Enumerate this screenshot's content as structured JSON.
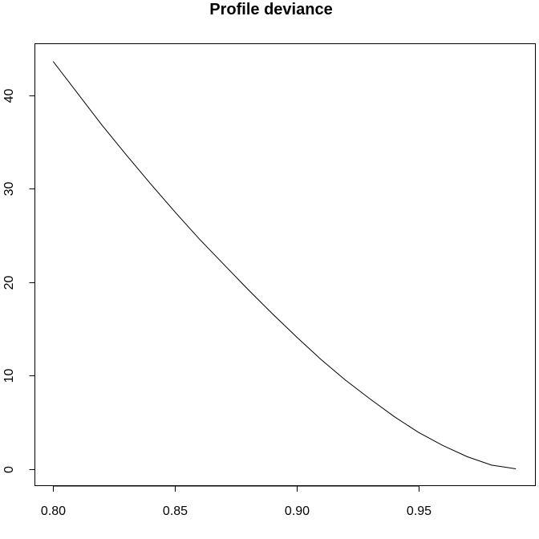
{
  "chart_data": {
    "type": "line",
    "title": "Profile deviance",
    "xlabel": "",
    "ylabel": "",
    "xlim": [
      0.7925,
      0.998
    ],
    "ylim": [
      -1.8,
      45.5
    ],
    "x_ticks": [
      0.8,
      0.85,
      0.9,
      0.95
    ],
    "x_tick_labels": [
      "0.80",
      "0.85",
      "0.90",
      "0.95"
    ],
    "y_ticks": [
      0,
      10,
      20,
      30,
      40
    ],
    "y_tick_labels": [
      "0",
      "10",
      "20",
      "30",
      "40"
    ],
    "grid": false,
    "legend": "none",
    "line_color": "#000000",
    "series": [
      {
        "x": [
          0.8,
          0.81,
          0.82,
          0.83,
          0.84,
          0.85,
          0.86,
          0.87,
          0.88,
          0.89,
          0.9,
          0.91,
          0.92,
          0.93,
          0.94,
          0.95,
          0.96,
          0.97,
          0.98,
          0.99
        ],
        "values": [
          43.6,
          40.2,
          36.8,
          33.6,
          30.5,
          27.5,
          24.6,
          21.9,
          19.2,
          16.6,
          14.1,
          11.7,
          9.5,
          7.5,
          5.6,
          3.9,
          2.5,
          1.3,
          0.4,
          0.0
        ]
      }
    ]
  }
}
